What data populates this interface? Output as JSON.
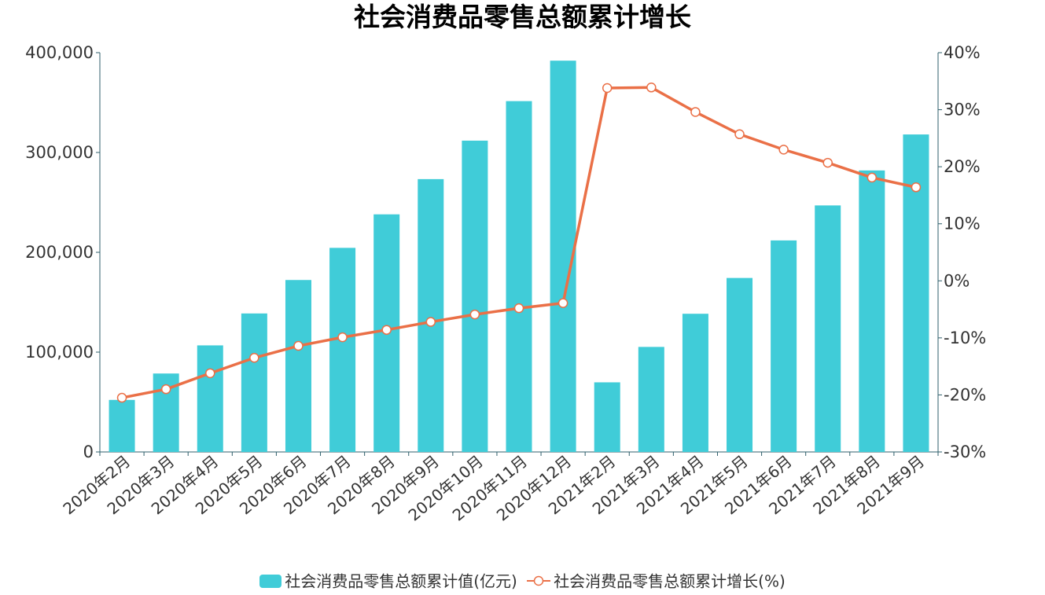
{
  "chart_data": {
    "type": "bar",
    "title": "社会消费品零售总额累计增长",
    "categories": [
      "2020年2月",
      "2020年3月",
      "2020年4月",
      "2020年5月",
      "2020年6月",
      "2020年7月",
      "2020年8月",
      "2020年9月",
      "2020年10月",
      "2020年11月",
      "2020年12月",
      "2021年2月",
      "2021年3月",
      "2021年4月",
      "2021年5月",
      "2021年6月",
      "2021年7月",
      "2021年8月",
      "2021年9月"
    ],
    "series": [
      {
        "name": "社会消费品零售总额累计值(亿元)",
        "type": "bar",
        "axis": "left",
        "color": "#40ccd8",
        "values": [
          52130,
          78580,
          106758,
          138740,
          172256,
          204459,
          238028,
          273324,
          311861,
          351453,
          391981,
          69737,
          105221,
          138436,
          174295,
          211904,
          246962,
          282016,
          318057
        ]
      },
      {
        "name": "社会消费品零售总额累计增长(%)",
        "type": "line",
        "axis": "right",
        "color": "#ea7047",
        "values": [
          -20.5,
          -19.0,
          -16.2,
          -13.5,
          -11.4,
          -9.9,
          -8.6,
          -7.2,
          -5.9,
          -4.8,
          -3.9,
          33.8,
          33.9,
          29.6,
          25.7,
          23.0,
          20.7,
          18.1,
          16.4
        ]
      }
    ],
    "yaxis_left": {
      "min": 0,
      "max": 400000,
      "ticks": [
        "0",
        "100,000",
        "200,000",
        "300,000",
        "400,000"
      ]
    },
    "yaxis_right": {
      "min": -30,
      "max": 40,
      "ticks": [
        "-30%",
        "-20%",
        "-10%",
        "0%",
        "10%",
        "20%",
        "30%",
        "40%"
      ]
    },
    "grid": false,
    "legend_position": "bottom-center"
  },
  "axis_color": "#2f5f6b"
}
